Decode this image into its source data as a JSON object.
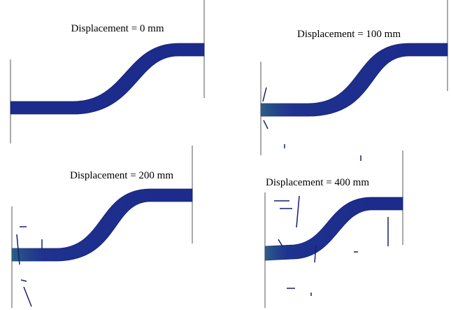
{
  "panels": [
    {
      "label": "Displacement = 0 mm"
    },
    {
      "label": "Displacement = 100 mm"
    },
    {
      "label": "Displacement = 200 mm"
    },
    {
      "label": "Displacement = 400 mm"
    }
  ]
}
